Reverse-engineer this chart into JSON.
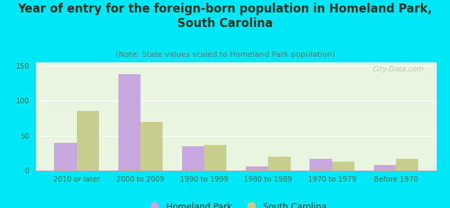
{
  "title": "Year of entry for the foreign-born population in Homeland Park,\nSouth Carolina",
  "subtitle": "(Note: State values scaled to Homeland Park population)",
  "categories": [
    "2010 or later",
    "2000 to 2009",
    "1990 to 1999",
    "1980 to 1989",
    "1970 to 1979",
    "Before 1970"
  ],
  "homeland_park": [
    40,
    138,
    35,
    6,
    17,
    8
  ],
  "south_carolina": [
    85,
    70,
    37,
    20,
    13,
    17
  ],
  "bar_color_hp": "#c9a8e0",
  "bar_color_sc": "#c8cf8e",
  "background_outer": "#00e8f8",
  "background_plot_top": "#e8f5e0",
  "background_plot_bottom": "#f8fff8",
  "ylim": [
    0,
    155
  ],
  "yticks": [
    0,
    50,
    100,
    150
  ],
  "watermark": "City-Data.com",
  "legend_hp": "Homeland Park",
  "legend_sc": "South Carolina",
  "title_fontsize": 12,
  "subtitle_fontsize": 8,
  "tick_fontsize": 7.5,
  "legend_fontsize": 9
}
